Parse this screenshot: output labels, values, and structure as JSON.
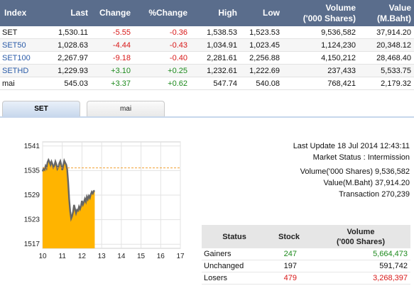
{
  "index_table": {
    "headers": {
      "index": "Index",
      "last": "Last",
      "change": "Change",
      "pchange": "%Change",
      "high": "High",
      "low": "Low",
      "volume_1": "Volume",
      "volume_2": "('000 Shares)",
      "value_1": "Value",
      "value_2": "(M.Baht)"
    },
    "rows": [
      {
        "index": "SET",
        "last": "1,530.11",
        "change": "-5.55",
        "pchange": "-0.36",
        "high": "1,538.53",
        "low": "1,523.53",
        "volume": "9,536,582",
        "value": "37,914.20"
      },
      {
        "index": "SET50",
        "last": "1,028.63",
        "change": "-4.44",
        "pchange": "-0.43",
        "high": "1,034.91",
        "low": "1,023.45",
        "volume": "1,124,230",
        "value": "20,348.12"
      },
      {
        "index": "SET100",
        "last": "2,267.97",
        "change": "-9.18",
        "pchange": "-0.40",
        "high": "2,281.61",
        "low": "2,256.88",
        "volume": "4,150,212",
        "value": "28,468.40"
      },
      {
        "index": "SETHD",
        "last": "1,229.93",
        "change": "+3.10",
        "pchange": "+0.25",
        "high": "1,232.61",
        "low": "1,222.69",
        "volume": "237,433",
        "value": "5,533.75"
      },
      {
        "index": "mai",
        "last": "545.03",
        "change": "+3.37",
        "pchange": "+0.62",
        "high": "547.74",
        "low": "540.08",
        "volume": "768,421",
        "value": "2,179.32"
      }
    ]
  },
  "tabs": [
    {
      "label": "SET",
      "active": true
    },
    {
      "label": "mai",
      "active": false
    }
  ],
  "colors": {
    "header_bg": "#5a6d8c",
    "negative": "#d81818",
    "positive": "#1c8a1c",
    "chart_fill": "#ffb400",
    "chart_line": "#666666",
    "prev_close_line": "#f0a030"
  },
  "info": {
    "last_update": "Last Update 18 Jul 2014 12:43:11",
    "market_status": "Market Status : Intermission",
    "volume": "Volume('000 Shares) 9,536,582",
    "value": "Value(M.Baht) 37,914.20",
    "transaction": "Transaction 270,239"
  },
  "status_table": {
    "headers": {
      "status": "Status",
      "stock": "Stock",
      "volume_1": "Volume",
      "volume_2": "('000 Shares)"
    },
    "rows": [
      {
        "status": "Gainers",
        "stock": "247",
        "volume": "5,664,473",
        "tone": "positive"
      },
      {
        "status": "Unchanged",
        "stock": "197",
        "volume": "591,742",
        "tone": "neutral"
      },
      {
        "status": "Losers",
        "stock": "479",
        "volume": "3,268,397",
        "tone": "negative"
      }
    ]
  },
  "chart_data": {
    "type": "area",
    "x_ticks": [
      "10",
      "11",
      "12",
      "13",
      "14",
      "15",
      "16",
      "17"
    ],
    "y_ticks": [
      "1541",
      "1535",
      "1529",
      "1523",
      "1517"
    ],
    "ylim": [
      1516,
      1542
    ],
    "xlim": [
      10,
      17
    ],
    "prev_close": 1535.66,
    "grid": true,
    "x": [
      10.0,
      10.05,
      10.1,
      10.15,
      10.2,
      10.25,
      10.3,
      10.35,
      10.4,
      10.45,
      10.5,
      10.55,
      10.6,
      10.65,
      10.7,
      10.75,
      10.8,
      10.85,
      10.9,
      10.95,
      11.0,
      11.05,
      11.1,
      11.15,
      11.2,
      11.25,
      11.3,
      11.35,
      11.4,
      11.45,
      11.5,
      11.55,
      11.6,
      11.65,
      11.7,
      11.75,
      11.8,
      11.85,
      11.9,
      11.95,
      12.0,
      12.05,
      12.1,
      12.15,
      12.2,
      12.25,
      12.3,
      12.35,
      12.4,
      12.45,
      12.5,
      12.55,
      12.6,
      12.65
    ],
    "values": [
      1534.8,
      1535.5,
      1535.2,
      1536.1,
      1535.6,
      1537.0,
      1537.6,
      1537.1,
      1536.4,
      1537.2,
      1536.6,
      1535.8,
      1536.3,
      1537.2,
      1536.5,
      1535.4,
      1535.8,
      1536.8,
      1537.3,
      1536.3,
      1535.1,
      1536.2,
      1537.4,
      1536.9,
      1536.4,
      1535.3,
      1532.1,
      1528.0,
      1525.1,
      1523.3,
      1523.9,
      1525.0,
      1526.6,
      1525.6,
      1524.6,
      1525.4,
      1525.2,
      1526.2,
      1525.6,
      1526.3,
      1527.6,
      1526.7,
      1527.3,
      1528.1,
      1527.4,
      1528.6,
      1528.0,
      1528.8,
      1528.3,
      1529.2,
      1529.8,
      1529.4,
      1530.0,
      1530.1
    ]
  }
}
